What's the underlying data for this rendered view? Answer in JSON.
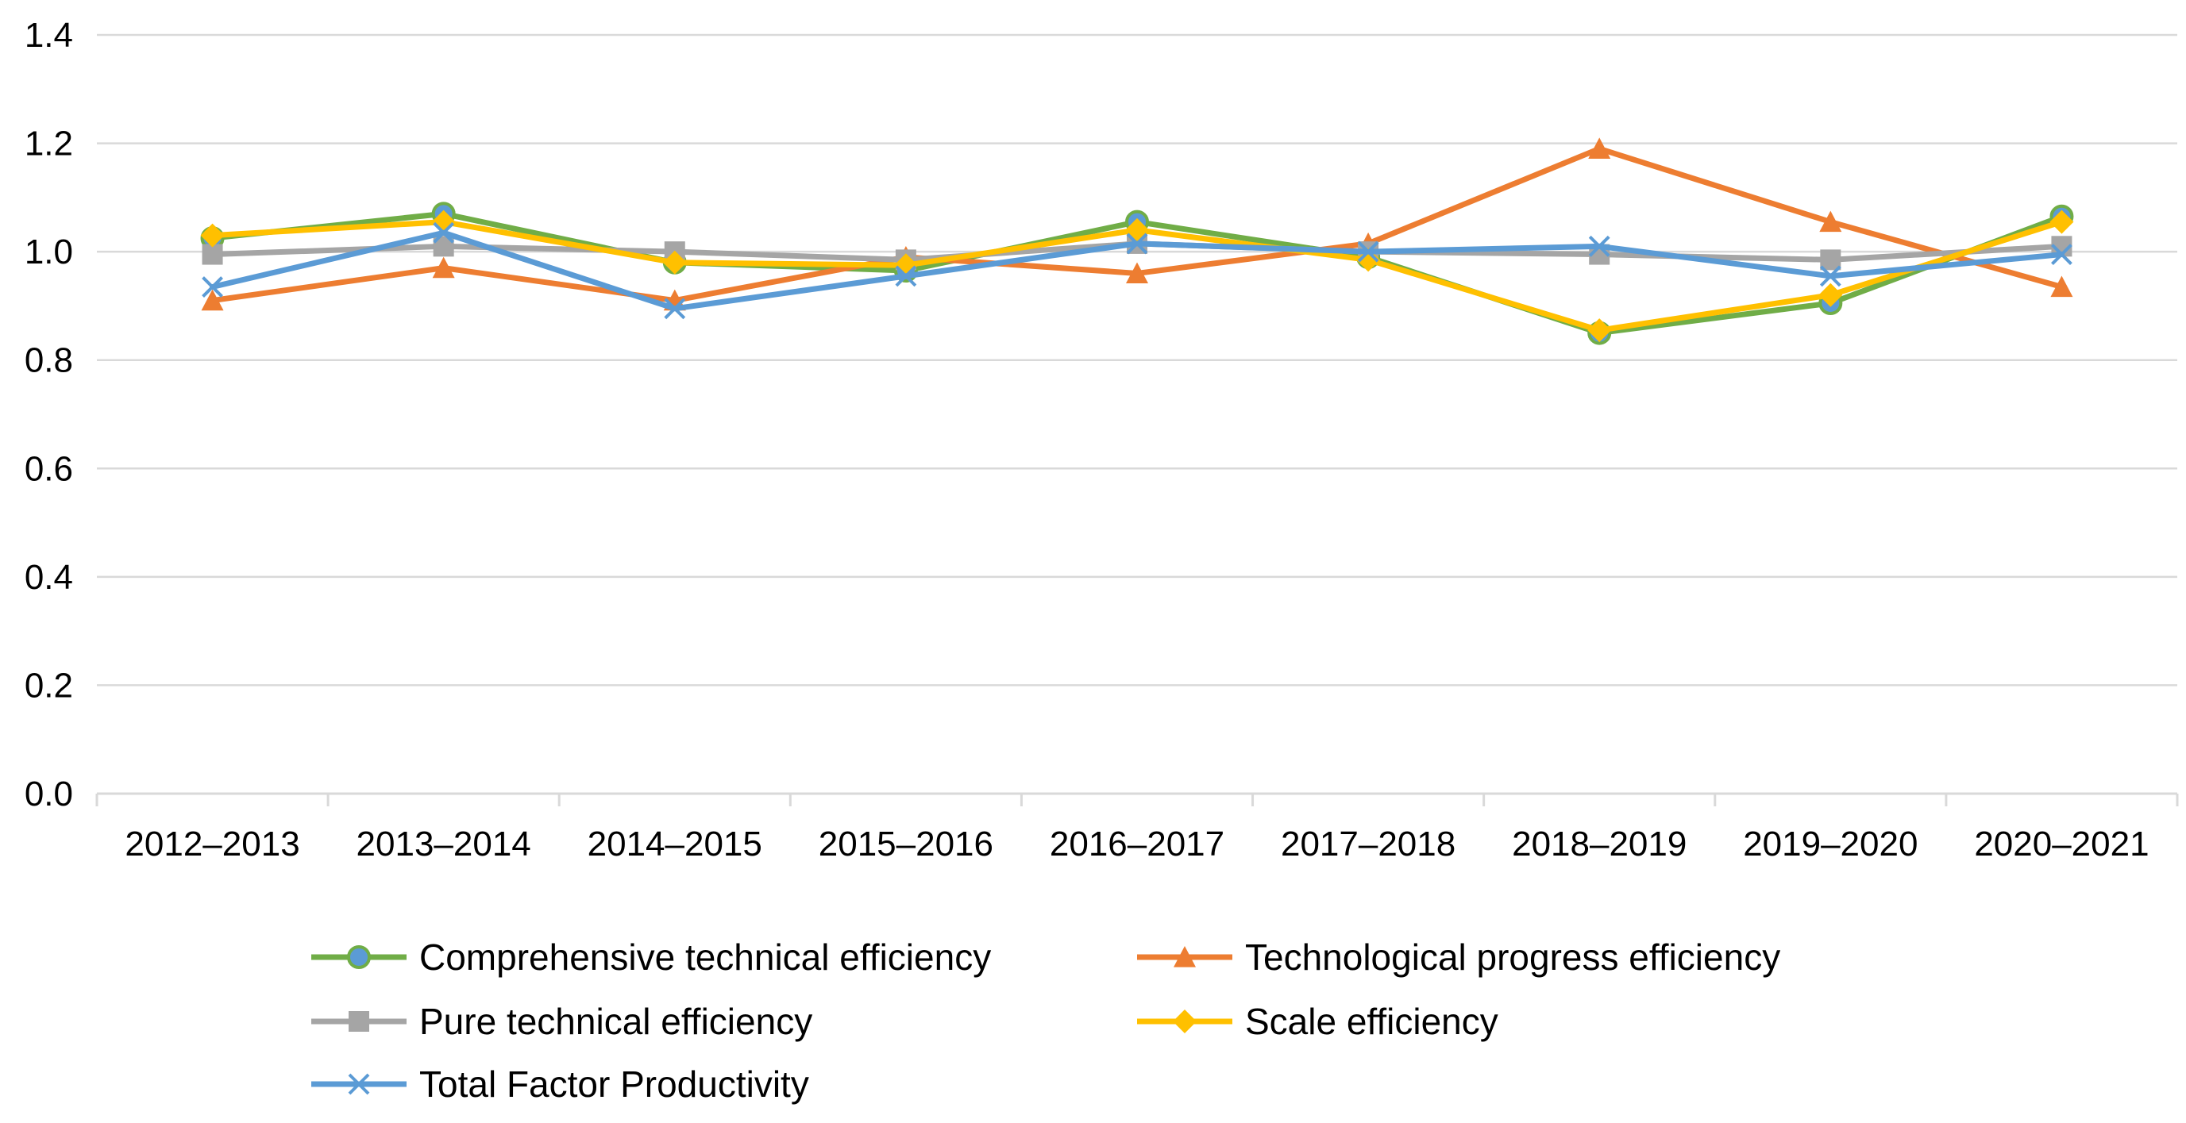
{
  "chart_data": {
    "type": "line",
    "title": "",
    "xlabel": "",
    "ylabel": "",
    "ylim": [
      0,
      1.4
    ],
    "yticks": [
      "0.0",
      "0.2",
      "0.4",
      "0.6",
      "0.8",
      "1.0",
      "1.2",
      "1.4"
    ],
    "grid": true,
    "legend_position": "bottom",
    "categories": [
      "2012–2013",
      "2013–2014",
      "2014–2015",
      "2015–2016",
      "2016–2017",
      "2017–2018",
      "2018–2019",
      "2019–2020",
      "2020–2021"
    ],
    "series": [
      {
        "name": "Comprehensive technical efficiency",
        "color": "#70AD47",
        "marker": "circle",
        "values": [
          1.025,
          1.07,
          0.98,
          0.965,
          1.055,
          0.99,
          0.85,
          0.905,
          1.065
        ]
      },
      {
        "name": "Technological progress efficiency",
        "color": "#ED7D31",
        "marker": "triangle",
        "values": [
          0.91,
          0.97,
          0.91,
          0.99,
          0.96,
          1.015,
          1.19,
          1.055,
          0.935
        ]
      },
      {
        "name": "Pure technical efficiency",
        "color": "#A5A5A5",
        "marker": "square",
        "values": [
          0.995,
          1.01,
          1.0,
          0.985,
          1.015,
          1.0,
          0.995,
          0.985,
          1.01
        ]
      },
      {
        "name": "Scale efficiency",
        "color": "#FFC000",
        "marker": "diamond",
        "values": [
          1.03,
          1.055,
          0.98,
          0.975,
          1.04,
          0.985,
          0.855,
          0.92,
          1.055
        ]
      },
      {
        "name": "Total Factor Productivity",
        "color": "#5B9BD5",
        "marker": "x",
        "values": [
          0.935,
          1.035,
          0.895,
          0.955,
          1.015,
          1.0,
          1.01,
          0.955,
          0.995
        ]
      }
    ]
  }
}
